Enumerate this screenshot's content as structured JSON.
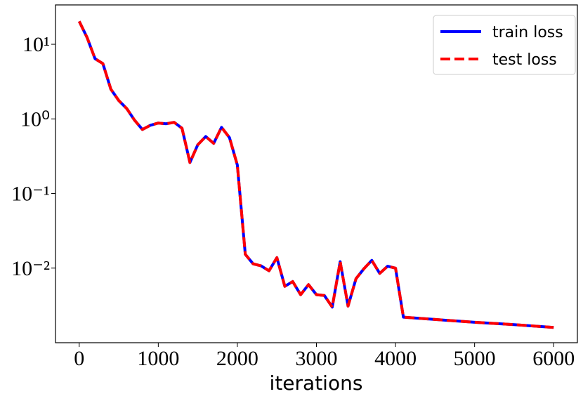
{
  "chart_data": {
    "type": "line",
    "xlabel": "iterations",
    "yscale": "log",
    "legend": "upper right",
    "x": [
      0,
      100,
      200,
      300,
      400,
      500,
      600,
      700,
      800,
      900,
      1000,
      1100,
      1200,
      1300,
      1400,
      1500,
      1600,
      1700,
      1800,
      1900,
      2000,
      2100,
      2200,
      2300,
      2400,
      2500,
      2600,
      2700,
      2800,
      2900,
      3000,
      3100,
      3200,
      3300,
      3400,
      3500,
      3600,
      3700,
      3800,
      3900,
      4000,
      4100,
      4500,
      5000,
      5500,
      6000
    ],
    "series": [
      {
        "name": "train loss",
        "color": "#0000ff",
        "style": "solid",
        "values": [
          20.3,
          12.3,
          6.4,
          5.5,
          2.5,
          1.76,
          1.38,
          0.96,
          0.72,
          0.82,
          0.88,
          0.86,
          0.9,
          0.75,
          0.26,
          0.45,
          0.58,
          0.47,
          0.77,
          0.56,
          0.24,
          0.0153,
          0.0114,
          0.0107,
          0.0092,
          0.0138,
          0.0057,
          0.0066,
          0.0044,
          0.006,
          0.0044,
          0.0043,
          0.003,
          0.0122,
          0.0031,
          0.0072,
          0.0098,
          0.0127,
          0.0085,
          0.0106,
          0.01,
          0.0022,
          0.00205,
          0.00188,
          0.00175,
          0.0016
        ]
      },
      {
        "name": "test loss",
        "color": "#ff0000",
        "style": "dashed",
        "values": [
          20.3,
          12.3,
          6.4,
          5.5,
          2.5,
          1.76,
          1.38,
          0.96,
          0.72,
          0.82,
          0.88,
          0.86,
          0.9,
          0.75,
          0.26,
          0.45,
          0.58,
          0.47,
          0.77,
          0.56,
          0.24,
          0.0153,
          0.0114,
          0.0107,
          0.0092,
          0.0138,
          0.0057,
          0.0066,
          0.0044,
          0.006,
          0.0044,
          0.0043,
          0.003,
          0.0122,
          0.0031,
          0.0072,
          0.0098,
          0.0127,
          0.0085,
          0.0106,
          0.01,
          0.0022,
          0.00205,
          0.00188,
          0.00175,
          0.0016
        ]
      }
    ],
    "xlim": [
      -300,
      6300
    ],
    "xticks": [
      0,
      1000,
      2000,
      3000,
      4000,
      5000,
      6000
    ],
    "ylim": [
      0.001,
      33.7
    ],
    "yticks": [
      {
        "value": 10,
        "label": "10¹"
      },
      {
        "value": 1,
        "label": "10⁰"
      },
      {
        "value": 0.1,
        "label": "10⁻¹"
      },
      {
        "value": 0.01,
        "label": "10⁻²"
      }
    ]
  }
}
